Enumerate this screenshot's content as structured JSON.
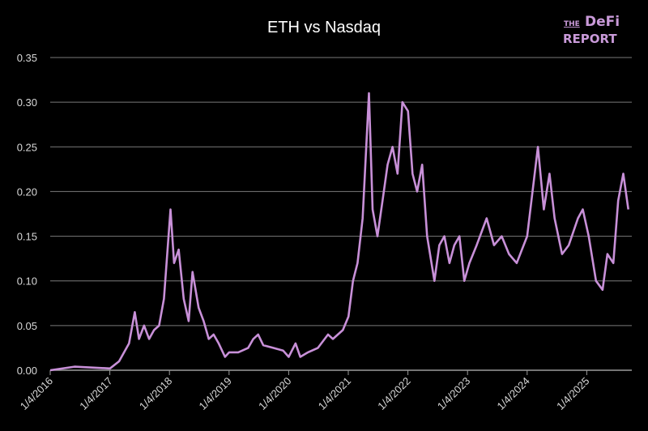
{
  "logo": {
    "line1_small": "THE",
    "line1": "DeFi",
    "line2": "REPORT"
  },
  "colors": {
    "background": "#000000",
    "line": "#c890d8",
    "grid": "#8a8a8a",
    "logo": "#c99ad9"
  },
  "chart_data": {
    "type": "line",
    "title": "ETH vs Nasdaq",
    "xlabel": "",
    "ylabel": "",
    "ylim": [
      0,
      0.35
    ],
    "xlim": [
      "2016-01-04",
      "2025-09-15"
    ],
    "grid": true,
    "legend": "none",
    "y_ticks": [
      "0.00",
      "0.05",
      "0.10",
      "0.15",
      "0.20",
      "0.25",
      "0.30",
      "0.35"
    ],
    "x_ticks": [
      "1/4/2016",
      "1/4/2017",
      "1/4/2018",
      "1/4/2019",
      "1/4/2020",
      "1/4/2021",
      "1/4/2022",
      "1/4/2023",
      "1/4/2024",
      "1/4/2025"
    ],
    "series": [
      {
        "x": [
          "2016-01-04",
          "2016-06-01",
          "2017-01-04",
          "2017-03-01",
          "2017-05-01",
          "2017-06-05",
          "2017-07-01",
          "2017-08-01",
          "2017-09-01",
          "2017-10-01",
          "2017-11-01",
          "2017-12-01",
          "2018-01-10",
          "2018-02-01",
          "2018-03-01",
          "2018-04-01",
          "2018-05-01",
          "2018-05-25",
          "2018-07-01",
          "2018-08-01",
          "2018-09-01",
          "2018-10-01",
          "2018-11-01",
          "2018-12-10",
          "2019-01-04",
          "2019-03-01",
          "2019-05-01",
          "2019-06-01",
          "2019-07-01",
          "2019-08-01",
          "2019-10-01",
          "2019-12-01",
          "2020-01-04",
          "2020-02-15",
          "2020-03-15",
          "2020-05-01",
          "2020-07-01",
          "2020-09-01",
          "2020-10-01",
          "2020-12-01",
          "2021-01-04",
          "2021-02-01",
          "2021-03-01",
          "2021-04-01",
          "2021-05-10",
          "2021-06-01",
          "2021-07-01",
          "2021-08-01",
          "2021-09-01",
          "2021-10-01",
          "2021-11-01",
          "2021-12-01",
          "2022-01-04",
          "2022-02-01",
          "2022-03-01",
          "2022-04-01",
          "2022-05-01",
          "2022-06-15",
          "2022-07-15",
          "2022-08-15",
          "2022-09-15",
          "2022-10-15",
          "2022-11-15",
          "2022-12-15",
          "2023-01-15",
          "2023-03-01",
          "2023-05-01",
          "2023-06-15",
          "2023-08-01",
          "2023-09-15",
          "2023-11-01",
          "2024-01-04",
          "2024-03-10",
          "2024-04-15",
          "2024-05-20",
          "2024-06-20",
          "2024-08-05",
          "2024-09-15",
          "2024-11-10",
          "2024-12-10",
          "2025-01-15",
          "2025-03-01",
          "2025-04-10",
          "2025-05-10",
          "2025-06-15",
          "2025-07-15",
          "2025-08-15",
          "2025-09-15"
        ],
        "values": [
          0.0,
          0.004,
          0.002,
          0.01,
          0.03,
          0.065,
          0.035,
          0.05,
          0.035,
          0.045,
          0.05,
          0.08,
          0.18,
          0.12,
          0.135,
          0.08,
          0.055,
          0.11,
          0.07,
          0.055,
          0.035,
          0.04,
          0.03,
          0.015,
          0.02,
          0.02,
          0.025,
          0.035,
          0.04,
          0.028,
          0.025,
          0.022,
          0.015,
          0.03,
          0.015,
          0.02,
          0.025,
          0.04,
          0.035,
          0.045,
          0.06,
          0.1,
          0.12,
          0.17,
          0.31,
          0.18,
          0.15,
          0.19,
          0.23,
          0.25,
          0.22,
          0.3,
          0.29,
          0.22,
          0.2,
          0.23,
          0.15,
          0.1,
          0.14,
          0.15,
          0.12,
          0.14,
          0.15,
          0.1,
          0.12,
          0.14,
          0.17,
          0.14,
          0.15,
          0.13,
          0.12,
          0.15,
          0.25,
          0.18,
          0.22,
          0.17,
          0.13,
          0.14,
          0.17,
          0.18,
          0.15,
          0.1,
          0.09,
          0.13,
          0.12,
          0.19,
          0.22,
          0.18
        ]
      }
    ]
  }
}
